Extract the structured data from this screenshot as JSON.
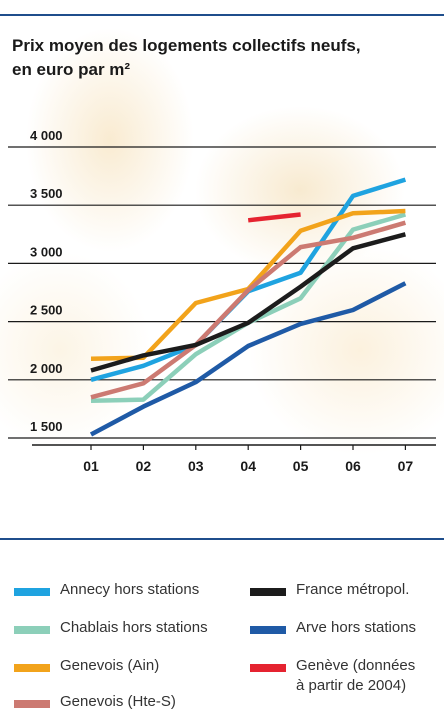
{
  "title_lines": [
    "Prix moyen des logements collectifs neufs,",
    "en euro par m²"
  ],
  "chart_data": {
    "type": "line",
    "title": "Prix moyen des logements collectifs neufs, en euro par m²",
    "x": [
      "01",
      "02",
      "03",
      "04",
      "05",
      "06",
      "07"
    ],
    "ylim": [
      1500,
      4000
    ],
    "yticks": [
      1500,
      2000,
      2500,
      3000,
      3500,
      4000
    ],
    "ytick_labels": [
      "1 500",
      "2 000",
      "2 500",
      "3 000",
      "3 500",
      "4 000"
    ],
    "grid": true,
    "series": [
      {
        "name": "Annecy hors stations",
        "color": "#1fa3e0",
        "values": [
          2000,
          2120,
          2300,
          2760,
          2920,
          3580,
          3720
        ]
      },
      {
        "name": "Chablais hors stations",
        "color": "#8ccfb9",
        "values": [
          1820,
          1830,
          2220,
          2490,
          2700,
          3290,
          3420
        ]
      },
      {
        "name": "Genevois (Ain)",
        "color": "#f2a31b",
        "values": [
          2180,
          2190,
          2660,
          2780,
          3280,
          3430,
          3450
        ]
      },
      {
        "name": "Genevois (Hte-S)",
        "color": "#cc7a72",
        "values": [
          1850,
          1970,
          2300,
          2770,
          3140,
          3220,
          3350
        ]
      },
      {
        "name": "France métropol.",
        "color": "#1c1c1c",
        "values": [
          2080,
          2210,
          2300,
          2490,
          2800,
          3130,
          3250
        ]
      },
      {
        "name": "Arve hors stations",
        "color": "#1f5aa6",
        "values": [
          1530,
          1770,
          1980,
          2290,
          2480,
          2600,
          2830
        ]
      },
      {
        "name": "Genève (données à partir de 2004)",
        "color": "#e52330",
        "values": [
          null,
          null,
          null,
          3370,
          3420,
          null,
          null
        ]
      }
    ]
  },
  "legend": [
    {
      "label": "Annecy hors stations",
      "color": "#1fa3e0"
    },
    {
      "label": "France métropol.",
      "color": "#1c1c1c"
    },
    {
      "label": "Chablais hors stations",
      "color": "#8ccfb9"
    },
    {
      "label": "Arve hors stations",
      "color": "#1f5aa6"
    },
    {
      "label": "Genevois (Ain)",
      "color": "#f2a31b"
    },
    {
      "label": "Genève (données",
      "label2": "à partir de 2004)",
      "color": "#e52330"
    },
    {
      "label": "Genevois (Hte-S)",
      "color": "#cc7a72"
    }
  ]
}
